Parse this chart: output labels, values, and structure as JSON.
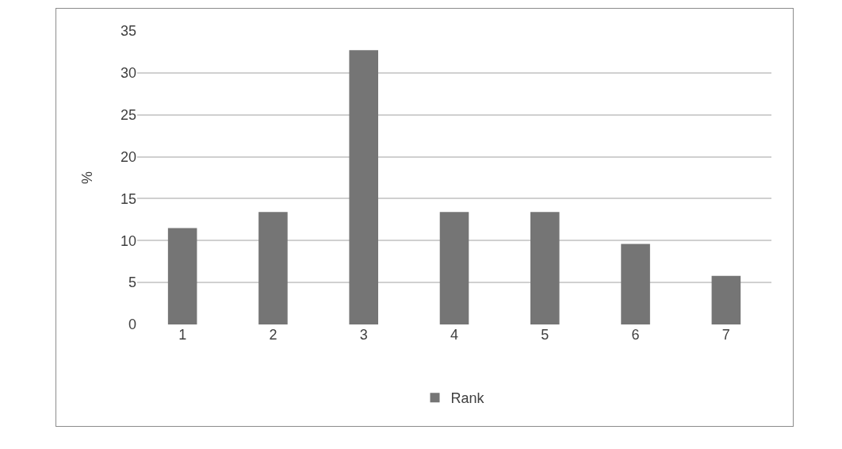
{
  "chart_data": {
    "type": "bar",
    "ylabel": "%",
    "categories": [
      "1",
      "2",
      "3",
      "4",
      "5",
      "6",
      "7"
    ],
    "series": [
      {
        "name": "Rank",
        "color": "#757575",
        "values": [
          11.5,
          13.4,
          32.7,
          13.4,
          13.4,
          9.6,
          5.8
        ]
      }
    ],
    "ylim": [
      0,
      35
    ],
    "yticks": [
      0,
      5,
      10,
      15,
      20,
      25,
      30,
      35
    ],
    "grid": "y",
    "legend": "bottom"
  }
}
